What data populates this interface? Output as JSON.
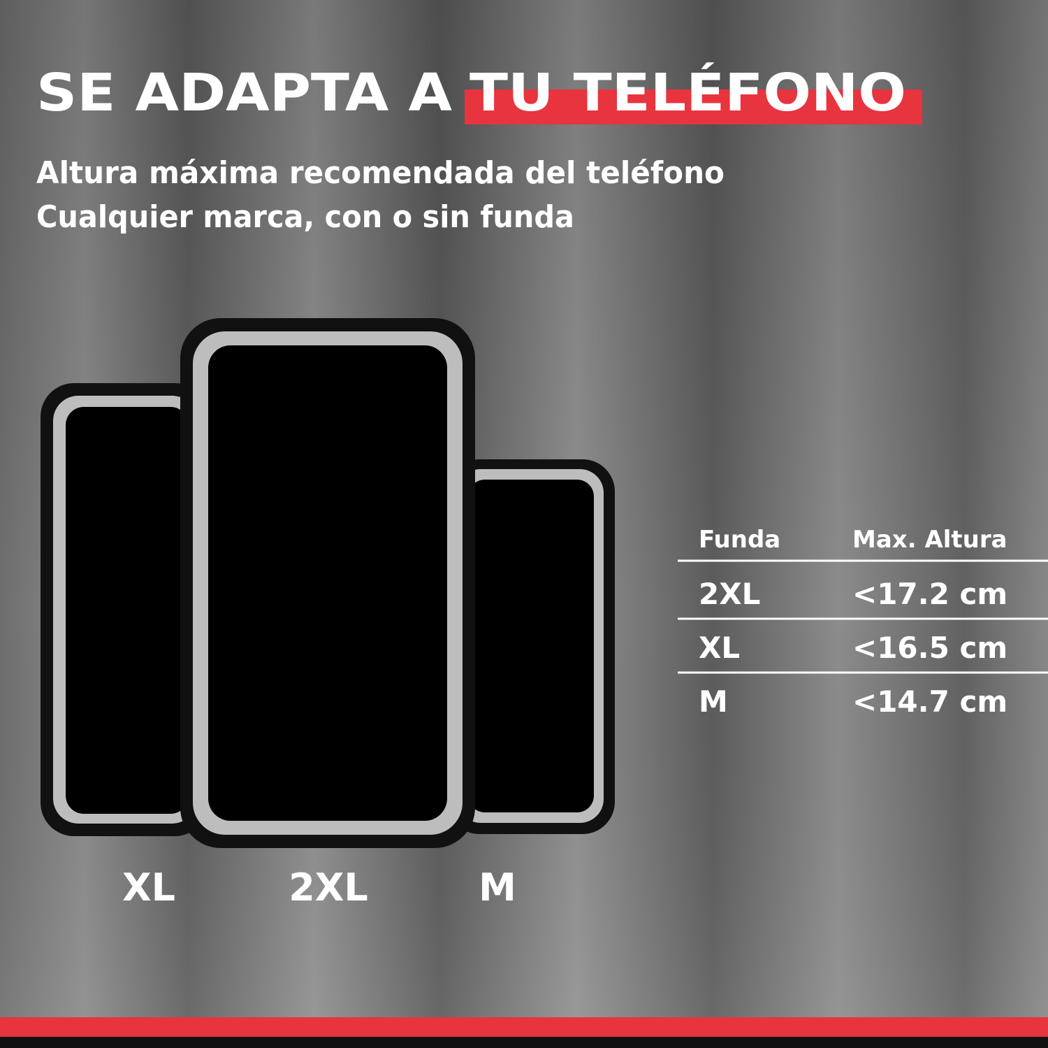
{
  "header": {
    "title_plain": "SE ADAPTA A",
    "title_highlight": "TU TELÉFONO",
    "subtitle": [
      "Altura máxima recomendada del teléfono",
      "Cualquier marca, con o sin funda"
    ]
  },
  "phones": [
    {
      "label": "XL"
    },
    {
      "label": "2XL"
    },
    {
      "label": "M"
    }
  ],
  "table": {
    "header": [
      "Funda",
      "Max. Altura"
    ],
    "rows": [
      [
        "2XL",
        "<17.2 cm"
      ],
      [
        "XL",
        "<16.5 cm"
      ],
      [
        "M",
        "<14.7 cm"
      ]
    ]
  }
}
